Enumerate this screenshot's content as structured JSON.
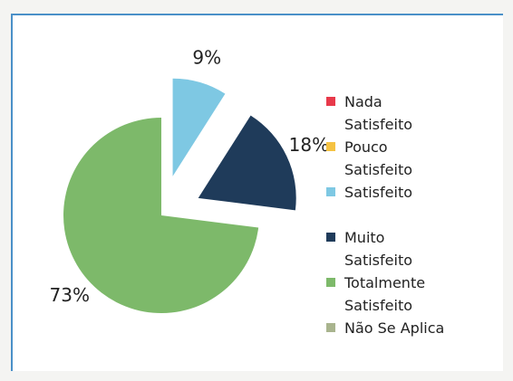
{
  "chart_data": {
    "type": "pie",
    "categories": [
      "Nada Satisfeito",
      "Pouco Satisfeito",
      "Satisfeito",
      "Muito Satisfeito",
      "Totalmente Satisfeito",
      "Não Se Aplica"
    ],
    "values": [
      0,
      0,
      9,
      18,
      73,
      0
    ],
    "value_labels": [
      null,
      null,
      "9%",
      "18%",
      "73%",
      null
    ],
    "colors": [
      "#e8394a",
      "#f5c242",
      "#7ec8e3",
      "#1f3b5a",
      "#7db96a",
      "#a9b48e"
    ],
    "exploded": [
      false,
      false,
      true,
      true,
      false,
      false
    ],
    "legend": "right"
  }
}
